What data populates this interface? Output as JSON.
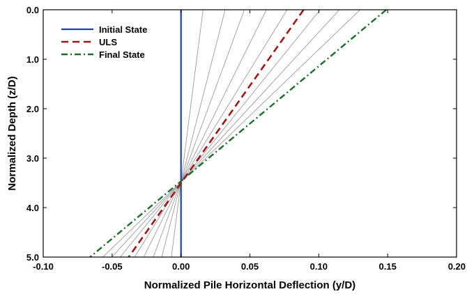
{
  "chart_data": {
    "type": "line",
    "xlabel": "Normalized Pile Horizontal Deflection (y/D)",
    "ylabel": "Normalized Depth (z/D)",
    "xlim": [
      -0.1,
      0.2
    ],
    "ylim": [
      5.0,
      0.0
    ],
    "y_inverted": true,
    "x_ticks": [
      "-0.10",
      "-0.05",
      "0.00",
      "0.05",
      "0.10",
      "0.15",
      "0.20"
    ],
    "y_ticks": [
      "0.0",
      "1.0",
      "2.0",
      "3.0",
      "4.0",
      "5.0"
    ],
    "legend_position": "top-left",
    "series": [
      {
        "name": "Initial State",
        "style": "solid",
        "color": "#1f3fb0",
        "x": [
          0.0,
          0.0
        ],
        "y": [
          0.0,
          5.0
        ]
      },
      {
        "name": "ULS",
        "style": "dashed",
        "color": "#a01515",
        "x": [
          0.089,
          -0.038
        ],
        "y": [
          0.0,
          5.0
        ]
      },
      {
        "name": "Final State",
        "style": "dash-dot",
        "color": "#1e6b2a",
        "x": [
          0.149,
          -0.066
        ],
        "y": [
          0.0,
          5.0
        ]
      }
    ],
    "intermediate_lines": {
      "color": "#909090",
      "pivot": {
        "x": 0.0,
        "y": 3.48
      },
      "top_x": [
        0.016,
        0.032,
        0.046,
        0.062,
        0.077,
        0.101,
        0.115,
        0.13
      ]
    }
  }
}
